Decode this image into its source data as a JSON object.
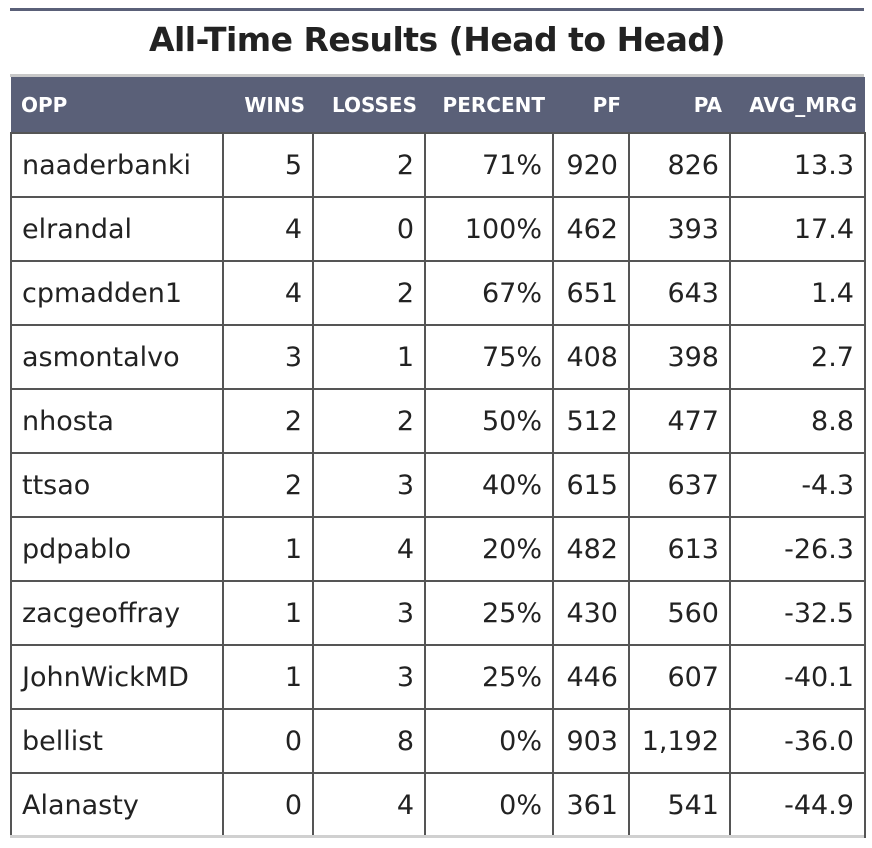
{
  "chart_data": {
    "type": "table",
    "title": "All-Time Results (Head to Head)",
    "columns": [
      "OPP",
      "WINS",
      "LOSSES",
      "PERCENT",
      "PF",
      "PA",
      "AVG_MRG"
    ],
    "rows": [
      {
        "opp": "naaderbanki",
        "wins": "5",
        "losses": "2",
        "percent": "71%",
        "pf": "920",
        "pa": "826",
        "avg_mrg": "13.3"
      },
      {
        "opp": "elrandal",
        "wins": "4",
        "losses": "0",
        "percent": "100%",
        "pf": "462",
        "pa": "393",
        "avg_mrg": "17.4"
      },
      {
        "opp": "cpmadden1",
        "wins": "4",
        "losses": "2",
        "percent": "67%",
        "pf": "651",
        "pa": "643",
        "avg_mrg": "1.4"
      },
      {
        "opp": "asmontalvo",
        "wins": "3",
        "losses": "1",
        "percent": "75%",
        "pf": "408",
        "pa": "398",
        "avg_mrg": "2.7"
      },
      {
        "opp": "nhosta",
        "wins": "2",
        "losses": "2",
        "percent": "50%",
        "pf": "512",
        "pa": "477",
        "avg_mrg": "8.8"
      },
      {
        "opp": "ttsao",
        "wins": "2",
        "losses": "3",
        "percent": "40%",
        "pf": "615",
        "pa": "637",
        "avg_mrg": "-4.3"
      },
      {
        "opp": "pdpablo",
        "wins": "1",
        "losses": "4",
        "percent": "20%",
        "pf": "482",
        "pa": "613",
        "avg_mrg": "-26.3"
      },
      {
        "opp": "zacgeoffray",
        "wins": "1",
        "losses": "3",
        "percent": "25%",
        "pf": "430",
        "pa": "560",
        "avg_mrg": "-32.5"
      },
      {
        "opp": "JohnWickMD",
        "wins": "1",
        "losses": "3",
        "percent": "25%",
        "pf": "446",
        "pa": "607",
        "avg_mrg": "-40.1"
      },
      {
        "opp": "bellist",
        "wins": "0",
        "losses": "8",
        "percent": "0%",
        "pf": "903",
        "pa": "1,192",
        "avg_mrg": "-36.0"
      },
      {
        "opp": "Alanasty",
        "wins": "0",
        "losses": "4",
        "percent": "0%",
        "pf": "361",
        "pa": "541",
        "avg_mrg": "-44.9"
      }
    ],
    "colors": {
      "header_bg": "#5a6078",
      "header_text": "#ffffff",
      "border": "#555555"
    }
  }
}
